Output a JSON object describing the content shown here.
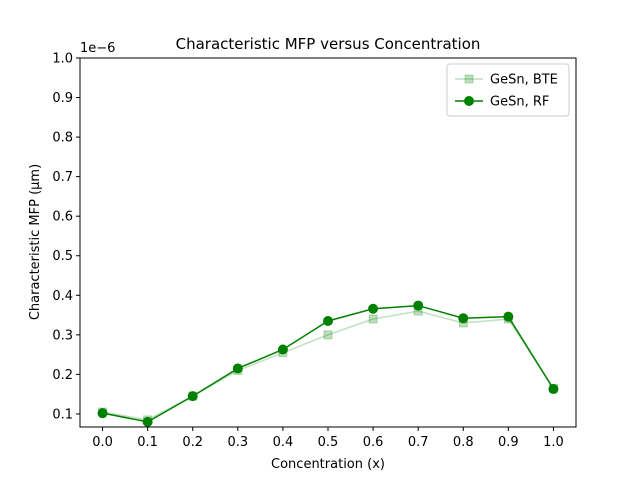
{
  "chart_data": {
    "type": "line",
    "title": "Characteristic MFP versus Concentration",
    "xlabel": "Concentration (x)",
    "ylabel": "Characteristic MFP (μm)",
    "offset_label": "1e−6",
    "xlim": [
      -0.05,
      1.05
    ],
    "ylim": [
      0.067,
      1.0
    ],
    "xticks": [
      0.0,
      0.1,
      0.2,
      0.3,
      0.4,
      0.5,
      0.6,
      0.7,
      0.8,
      0.9,
      1.0
    ],
    "xtick_labels": [
      "0.0",
      "0.1",
      "0.2",
      "0.3",
      "0.4",
      "0.5",
      "0.6",
      "0.7",
      "0.8",
      "0.9",
      "1.0"
    ],
    "yticks": [
      0.1,
      0.2,
      0.3,
      0.4,
      0.5,
      0.6,
      0.7,
      0.8,
      0.9,
      1.0
    ],
    "ytick_labels": [
      "0.1",
      "0.2",
      "0.3",
      "0.4",
      "0.5",
      "0.6",
      "0.7",
      "0.8",
      "0.9",
      "1.0"
    ],
    "grid": false,
    "legend_position": "top-right",
    "x": [
      0.0,
      0.1,
      0.2,
      0.3,
      0.4,
      0.5,
      0.6,
      0.7,
      0.8,
      0.9,
      1.0
    ],
    "series": [
      {
        "name": "GeSn, BTE",
        "marker": "square",
        "color": "#008000",
        "opacity": 0.25,
        "values": [
          0.105,
          0.085,
          0.145,
          0.21,
          0.255,
          0.3,
          0.34,
          0.36,
          0.33,
          0.34,
          0.165
        ]
      },
      {
        "name": "GeSn, RF",
        "marker": "circle",
        "color": "#008000",
        "opacity": 1.0,
        "values": [
          0.102,
          0.08,
          0.145,
          0.215,
          0.263,
          0.335,
          0.366,
          0.374,
          0.342,
          0.346,
          0.163
        ]
      }
    ]
  }
}
